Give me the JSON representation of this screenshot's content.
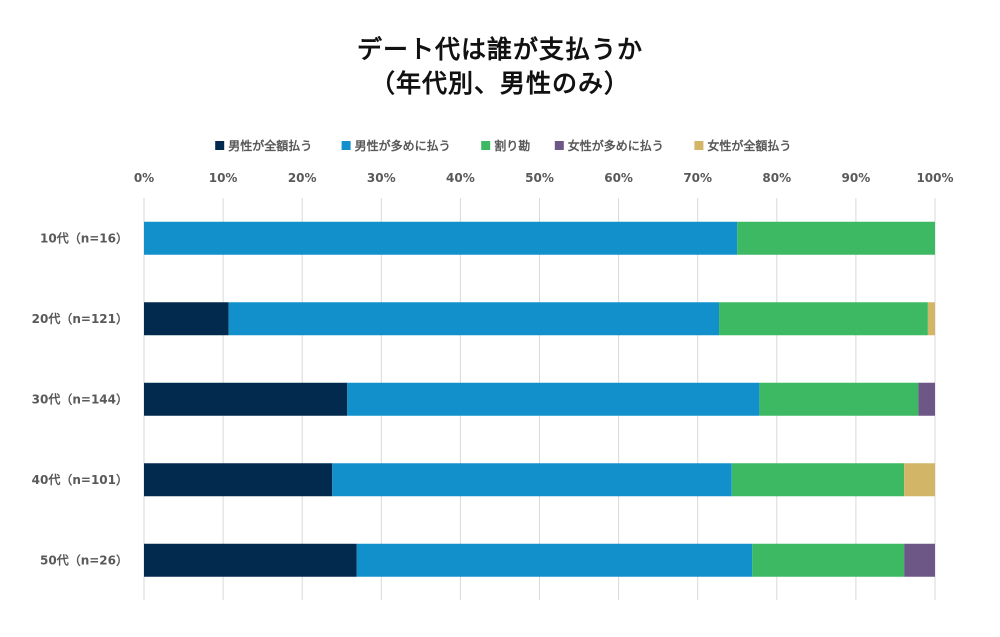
{
  "chart_data": {
    "type": "bar",
    "orientation": "horizontal",
    "stacked": "percent",
    "title_lines": [
      "デート代は誰が支払うか",
      "（年代別、男性のみ）"
    ],
    "xlabel": "",
    "ylabel": "",
    "xlim": [
      0,
      100
    ],
    "x_ticks": [
      "0%",
      "10%",
      "20%",
      "30%",
      "40%",
      "50%",
      "60%",
      "70%",
      "80%",
      "90%",
      "100%"
    ],
    "grid": "vertical",
    "legend_position": "top",
    "categories": [
      "10代（n=16）",
      "20代（n=121）",
      "30代（n=144）",
      "40代（n=101）",
      "50代（n=26）"
    ],
    "series": [
      {
        "name": "男性が全額払う",
        "color": "#022a4f",
        "values": [
          0,
          10.7,
          25.7,
          23.8,
          26.9
        ]
      },
      {
        "name": "男性が多めに払う",
        "color": "#1290cb",
        "values": [
          75.0,
          62.0,
          52.1,
          50.5,
          50.0
        ]
      },
      {
        "name": "割り勘",
        "color": "#3db863",
        "values": [
          25.0,
          26.4,
          20.1,
          21.8,
          19.2
        ]
      },
      {
        "name": "女性が多めに払う",
        "color": "#6c5787",
        "values": [
          0,
          0,
          2.1,
          0,
          3.9
        ]
      },
      {
        "name": "女性が全額払う",
        "color": "#d2b566",
        "values": [
          0,
          0.9,
          0,
          3.9,
          0
        ]
      }
    ]
  }
}
